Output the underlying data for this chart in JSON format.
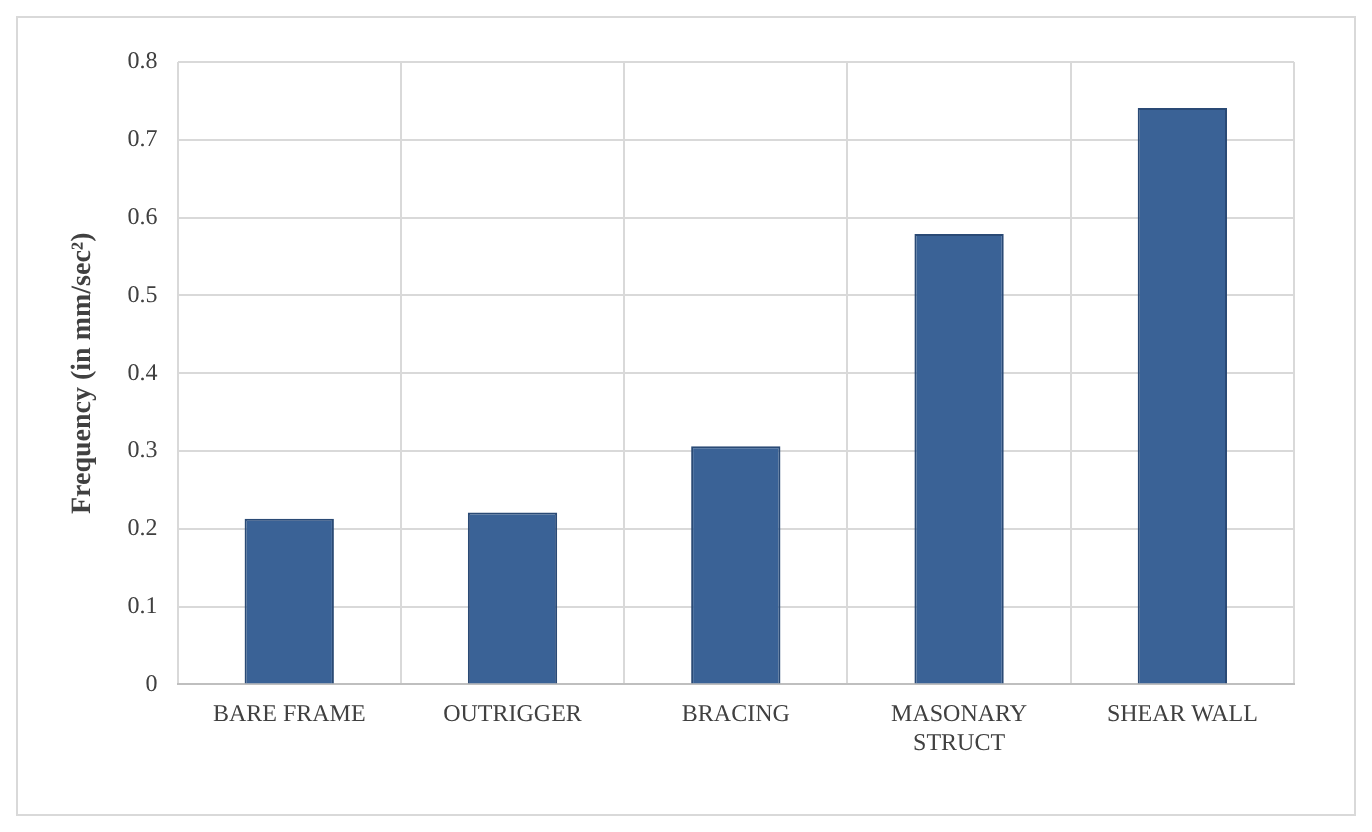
{
  "chart_data": {
    "type": "bar",
    "ylabel": "Frequency (in mm/sec²)",
    "categories": [
      "BARE FRAME",
      "OUTRIGGER",
      "BRACING",
      "MASONARY STRUCT",
      "SHEAR WALL"
    ],
    "values": [
      0.213,
      0.221,
      0.306,
      0.579,
      0.741
    ],
    "color": "#3a6296",
    "ylim": [
      0,
      0.8
    ],
    "yticks": [
      0,
      0.1,
      0.2,
      0.3,
      0.4,
      0.5,
      0.6,
      0.7,
      0.8
    ],
    "grid": true,
    "legend": false
  }
}
